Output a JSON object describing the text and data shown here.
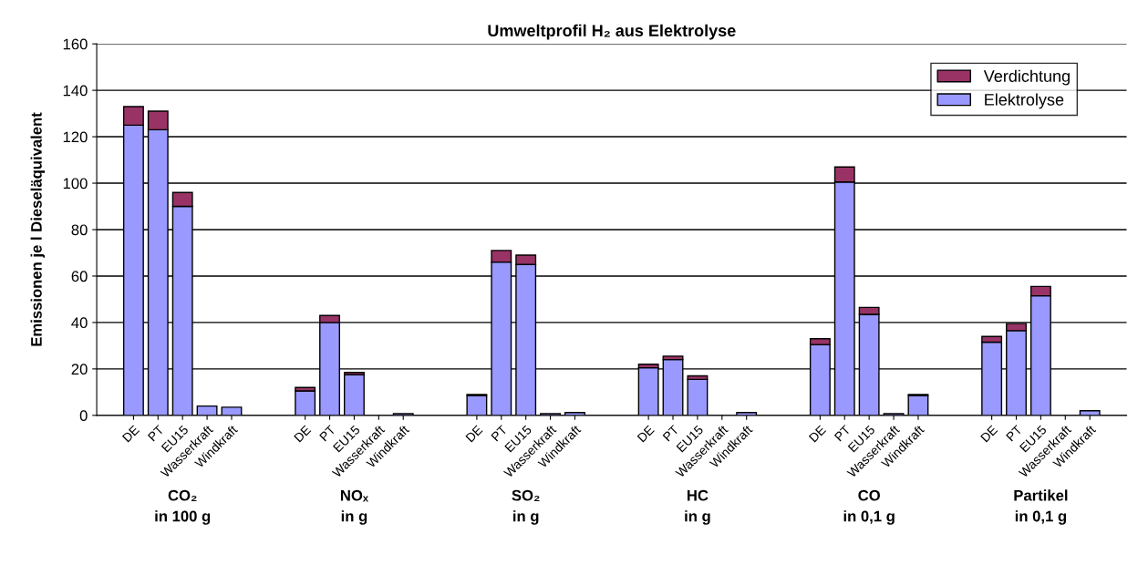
{
  "chart_data": {
    "type": "bar",
    "stacked": true,
    "title": "Umweltprofil H₂ aus Elektrolyse",
    "ylabel": "Emissionen je l Dieseläquivalent",
    "categories": [
      "DE",
      "PT",
      "EU15",
      "Wasserkraft",
      "Windkraft",
      null,
      null,
      "DE",
      "PT",
      "EU15",
      "Wasserkraft",
      "Windkraft",
      null,
      null,
      "DE",
      "PT",
      "EU15",
      "Wasserkraft",
      "Windkraft",
      null,
      null,
      "DE",
      "PT",
      "EU15",
      "Wasserkraft",
      "Windkraft",
      null,
      null,
      "DE",
      "PT",
      "EU15",
      "Wasserkraft",
      "Windkraft",
      null,
      null,
      "DE",
      "PT",
      "EU15",
      "Wasserkraft",
      "Windkraft"
    ],
    "series": [
      {
        "name": "Elektrolyse",
        "color": "#9999ff",
        "values": [
          125,
          123,
          90,
          4,
          3.5,
          null,
          null,
          10.5,
          40,
          17.5,
          null,
          0.7,
          null,
          null,
          8.5,
          66,
          65,
          0.7,
          1.2,
          null,
          null,
          20.5,
          24,
          15.5,
          null,
          1.2,
          null,
          null,
          30.5,
          100.5,
          43.5,
          0.7,
          8.5,
          null,
          null,
          31.5,
          36.5,
          51.5,
          null,
          2
        ]
      },
      {
        "name": "Verdichtung",
        "color": "#993366",
        "values": [
          8,
          8,
          6,
          null,
          null,
          null,
          null,
          1.5,
          3,
          1,
          null,
          null,
          null,
          null,
          0.5,
          5,
          4,
          null,
          null,
          null,
          null,
          1.5,
          1.5,
          1.5,
          null,
          null,
          null,
          null,
          2.5,
          6.5,
          3,
          null,
          0.5,
          null,
          null,
          2.5,
          3,
          4,
          null,
          null
        ]
      }
    ],
    "ylim": [
      0,
      160
    ],
    "yticks": [
      0,
      20,
      40,
      60,
      80,
      100,
      120,
      140,
      160
    ],
    "grid": "y",
    "legend": "top right",
    "annotations": [
      "CO₂\nin 100 g",
      "NOₓ\nin g",
      "SO₂\nin g",
      "HC\nin g",
      "CO\nin 0,1 g",
      "Partikel\nin 0,1 g"
    ]
  }
}
